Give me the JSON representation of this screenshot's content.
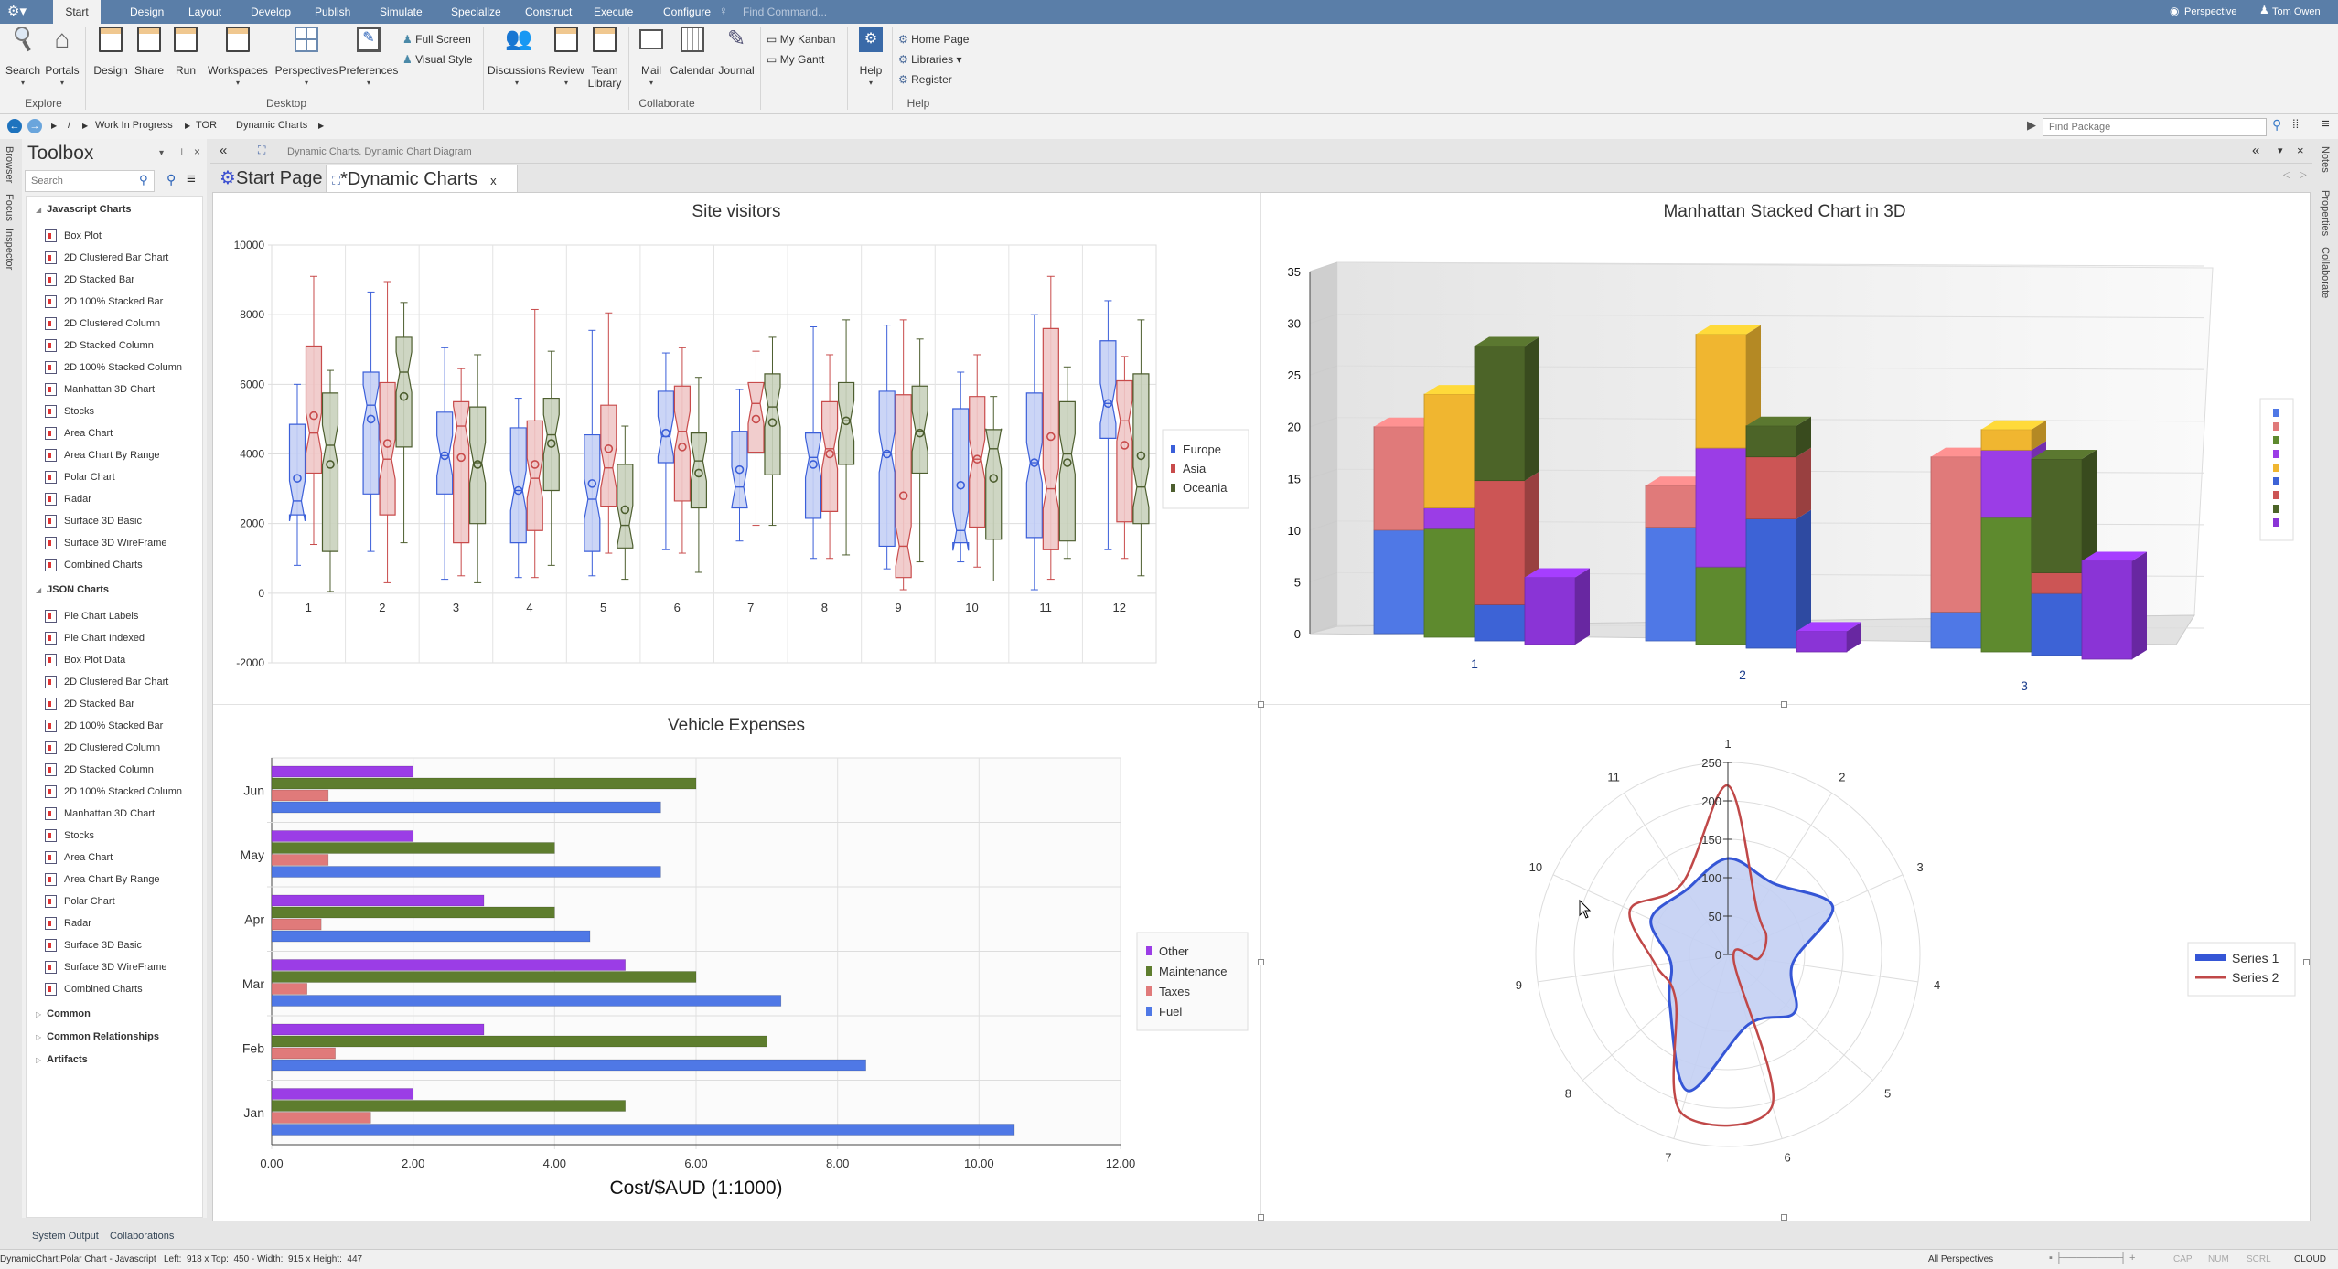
{
  "app": {
    "menu_tabs": [
      "Start",
      "Design",
      "Layout",
      "Develop",
      "Publish",
      "Simulate",
      "Specialize",
      "Construct",
      "Execute",
      "Configure"
    ],
    "find_command_placeholder": "Find Command...",
    "perspective": "Perspective",
    "user": "Tom Owen"
  },
  "ribbon": {
    "explore": {
      "label": "Explore",
      "search": "Search",
      "portals": "Portals"
    },
    "desktop": {
      "label": "Desktop",
      "design": "Design",
      "share": "Share",
      "run": "Run",
      "workspaces": "Workspaces",
      "perspectives": "Perspectives",
      "preferences": "Preferences",
      "full_screen": "Full Screen",
      "visual_style": "Visual Style"
    },
    "collaborate": {
      "label": "Collaborate",
      "discussions": "Discussions",
      "review": "Review",
      "team": "Team",
      "library": "Library",
      "mail": "Mail",
      "calendar": "Calendar",
      "journal": "Journal",
      "my_kanban": "My Kanban",
      "my_gantt": "My Gantt"
    },
    "help": {
      "label": "Help",
      "help": "Help",
      "home_page": "Home Page",
      "libraries": "Libraries",
      "register": "Register"
    }
  },
  "breadcrumb": {
    "items": [
      "/",
      "Work In Progress",
      "TOR",
      "Dynamic Charts"
    ],
    "find_package_placeholder": "Find Package"
  },
  "left_tabs": [
    "Browser",
    "Focus",
    "Inspector"
  ],
  "right_tabs": [
    "Notes",
    "Properties",
    "Collaborate"
  ],
  "toolbox": {
    "title": "Toolbox",
    "search_placeholder": "Search",
    "groups": [
      {
        "name": "Javascript Charts",
        "items": [
          "Box Plot",
          "2D Clustered Bar Chart",
          "2D Stacked Bar",
          "2D 100% Stacked Bar",
          "2D Clustered Column",
          "2D Stacked Column",
          "2D 100% Stacked Column",
          "Manhattan 3D Chart",
          "Stocks",
          "Area Chart",
          "Area Chart By Range",
          "Polar Chart",
          "Radar",
          "Surface 3D Basic",
          "Surface 3D WireFrame",
          "Combined Charts"
        ]
      },
      {
        "name": "JSON Charts",
        "items": [
          "Pie Chart Labels",
          "Pie Chart Indexed",
          "Box Plot Data",
          "2D Clustered Bar Chart",
          "2D Stacked Bar",
          "2D 100% Stacked Bar",
          "2D Clustered Column",
          "2D Stacked Column",
          "2D 100% Stacked Column",
          "Manhattan 3D Chart",
          "Stocks",
          "Area Chart",
          "Area Chart By Range",
          "Polar Chart",
          "Radar",
          "Surface 3D Basic",
          "Surface 3D WireFrame",
          "Combined Charts"
        ]
      }
    ],
    "collapsed_groups": [
      "Common",
      "Common Relationships",
      "Artifacts"
    ]
  },
  "document": {
    "header": "Dynamic Charts.  Dynamic Chart Diagram",
    "tabs": [
      {
        "label": "Start Page"
      },
      {
        "label": "*Dynamic Charts",
        "close": "x"
      }
    ]
  },
  "bottom_tabs": [
    "System Output",
    "Collaborations"
  ],
  "status": {
    "left": "DynamicChart:Polar Chart - Javascript   Left:  918 x Top:  450 - Width:  915 x Height:  447",
    "perspectives": "All Perspectives",
    "indicators": [
      "CAP",
      "NUM",
      "SCRL",
      "CLOUD"
    ]
  },
  "chart_data": [
    {
      "type": "box",
      "title": "Site visitors",
      "ylim": [
        -2000,
        10000
      ],
      "yticks": [
        -2000,
        0,
        2000,
        4000,
        6000,
        8000,
        10000
      ],
      "categories": [
        "1",
        "2",
        "3",
        "4",
        "5",
        "6",
        "7",
        "8",
        "9",
        "10",
        "11",
        "12"
      ],
      "value_order": [
        "low",
        "q1",
        "median",
        "q3",
        "high",
        "mean"
      ],
      "legend_position": "right",
      "series": [
        {
          "name": "Europe",
          "color": "#3b5fd9",
          "fill": "#c5d0f5",
          "values": [
            [
              800,
              2250,
              2650,
              4850,
              6000,
              3300
            ],
            [
              1200,
              2850,
              5400,
              6350,
              8650,
              5000
            ],
            [
              400,
              2850,
              3950,
              5200,
              7050,
              3950
            ],
            [
              450,
              1450,
              2950,
              4750,
              5600,
              2950
            ],
            [
              500,
              1200,
              2700,
              4550,
              7550,
              3150
            ],
            [
              1250,
              3750,
              4500,
              5800,
              6900,
              4600
            ],
            [
              1500,
              2450,
              3050,
              4650,
              5850,
              3550
            ],
            [
              1000,
              2150,
              3900,
              4600,
              7650,
              3700
            ],
            [
              700,
              1350,
              4050,
              5800,
              7700,
              4000
            ],
            [
              900,
              1450,
              1800,
              5300,
              6350,
              3100
            ],
            [
              100,
              1600,
              3750,
              5750,
              8000,
              3750
            ],
            [
              1250,
              4450,
              5450,
              7250,
              8400,
              5450
            ]
          ]
        },
        {
          "name": "Asia",
          "color": "#c84b4b",
          "fill": "#f0c8c8",
          "values": [
            [
              1400,
              3450,
              4600,
              7100,
              9100,
              5100
            ],
            [
              300,
              2250,
              3850,
              6050,
              8950,
              4300
            ],
            [
              500,
              1450,
              4800,
              5500,
              6450,
              3900
            ],
            [
              450,
              1800,
              3300,
              4950,
              8150,
              3700
            ],
            [
              1150,
              2500,
              3600,
              5400,
              8050,
              4150
            ],
            [
              1150,
              2650,
              4650,
              5950,
              7050,
              4200
            ],
            [
              1950,
              4050,
              5450,
              6050,
              6950,
              5000
            ],
            [
              1000,
              2350,
              4150,
              5500,
              6850,
              4000
            ],
            [
              100,
              450,
              1350,
              5700,
              7850,
              2800
            ],
            [
              750,
              1900,
              3850,
              5650,
              6850,
              3850
            ],
            [
              400,
              1250,
              3000,
              7600,
              9100,
              4500
            ],
            [
              1000,
              2050,
              4950,
              6100,
              6800,
              4250
            ]
          ]
        },
        {
          "name": "Oceania",
          "color": "#4d5e2f",
          "fill": "#c9d1bd",
          "values": [
            [
              50,
              1200,
              4250,
              5750,
              6400,
              3700
            ],
            [
              1450,
              4200,
              6350,
              7350,
              8350,
              5650
            ],
            [
              300,
              2000,
              3750,
              5350,
              6850,
              3700
            ],
            [
              800,
              2950,
              4550,
              5600,
              6950,
              4300
            ],
            [
              400,
              1300,
              1950,
              3700,
              4800,
              2400
            ],
            [
              600,
              2450,
              3800,
              4600,
              6200,
              3450
            ],
            [
              1950,
              3400,
              5350,
              6300,
              7350,
              4900
            ],
            [
              1100,
              3700,
              4950,
              6050,
              7850,
              4950
            ],
            [
              900,
              3450,
              4650,
              5950,
              7300,
              4600
            ],
            [
              350,
              1550,
              4150,
              4700,
              5650,
              3300
            ],
            [
              1000,
              1500,
              4000,
              5500,
              6500,
              3750
            ],
            [
              500,
              2000,
              3050,
              6300,
              7850,
              3950
            ]
          ]
        }
      ]
    },
    {
      "type": "bar3d-stacked",
      "title": "Manhattan Stacked Chart in 3D",
      "ylim": [
        0,
        35
      ],
      "yticks": [
        0,
        5,
        10,
        15,
        20,
        25,
        30,
        35
      ],
      "categories": [
        "1",
        "2",
        "3"
      ],
      "legend_position": "right",
      "legend_colors": [
        "#4f78e6",
        "#e07a7a",
        "#5e8a2e",
        "#9b3de6",
        "#f0b630",
        "#3d63d6",
        "#cc5555",
        "#4c6428",
        "#8a34d6"
      ],
      "stacks": [
        {
          "series": [
            {
              "color": "#4f78e6",
              "values": [
                10,
                11,
                3.5
              ]
            },
            {
              "color": "#e07a7a",
              "values": [
                10,
                4,
                15
              ]
            }
          ]
        },
        {
          "series": [
            {
              "color": "#5e8a2e",
              "values": [
                10.5,
                7.5,
                13
              ]
            },
            {
              "color": "#9b3de6",
              "values": [
                2,
                11.5,
                6.5
              ]
            },
            {
              "color": "#f0b630",
              "values": [
                11,
                11,
                2
              ]
            }
          ]
        },
        {
          "series": [
            {
              "color": "#3d63d6",
              "values": [
                3.5,
                12.5,
                6
              ]
            },
            {
              "color": "#cc5555",
              "values": [
                12,
                6,
                2
              ]
            },
            {
              "color": "#4c6428",
              "values": [
                13,
                3,
                11
              ]
            }
          ]
        },
        {
          "series": [
            {
              "color": "#8a34d6",
              "values": [
                6.5,
                2,
                9.5
              ]
            }
          ]
        }
      ]
    },
    {
      "type": "bar",
      "orientation": "horizontal",
      "title": "Vehicle Expenses",
      "xlabel": "Cost/$AUD (1:1000)",
      "xlim": [
        0,
        12
      ],
      "xticks": [
        "0.00",
        "2.00",
        "4.00",
        "6.00",
        "8.00",
        "10.00",
        "12.00"
      ],
      "categories": [
        "Jun",
        "May",
        "Apr",
        "Mar",
        "Feb",
        "Jan"
      ],
      "legend_position": "right",
      "series": [
        {
          "name": "Other",
          "color": "#9b3de6",
          "values": [
            2,
            2,
            3,
            5,
            3,
            2
          ]
        },
        {
          "name": "Maintenance",
          "color": "#5e7d2e",
          "values": [
            6,
            4,
            4,
            6,
            7,
            5
          ]
        },
        {
          "name": "Taxes",
          "color": "#e07a7a",
          "values": [
            0.8,
            0.8,
            0.7,
            0.5,
            0.9,
            1.4
          ]
        },
        {
          "name": "Fuel",
          "color": "#4f78e6",
          "values": [
            5.5,
            5.5,
            4.5,
            7.2,
            8.4,
            10.5
          ]
        }
      ]
    },
    {
      "type": "polar",
      "rlim": [
        0,
        250
      ],
      "rticks": [
        "0",
        "50",
        "100",
        "150",
        "200",
        "250"
      ],
      "categories": [
        "1",
        "2",
        "3",
        "4",
        "5",
        "6",
        "7",
        "8",
        "9",
        "10",
        "11"
      ],
      "legend_position": "right",
      "series": [
        {
          "name": "Series 1",
          "color": "#3556d6",
          "fill": "#c3cff3",
          "values": [
            125,
            110,
            150,
            85,
            115,
            95,
            185,
            100,
            75,
            110,
            100
          ]
        },
        {
          "name": "Series 2",
          "color": "#c04848",
          "values": [
            220,
            70,
            55,
            40,
            10,
            205,
            215,
            90,
            95,
            140,
            110
          ]
        }
      ]
    }
  ]
}
